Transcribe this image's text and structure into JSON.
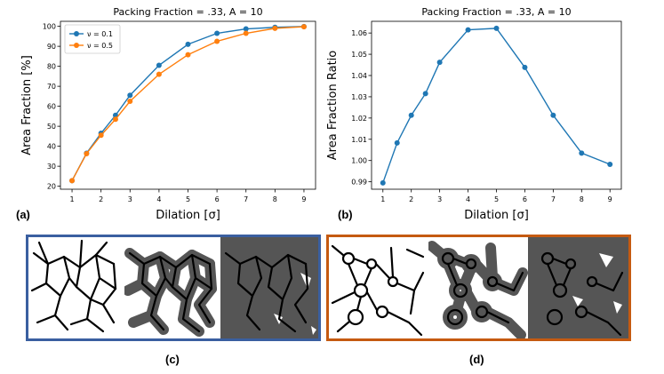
{
  "chart_data": [
    {
      "type": "line",
      "title": "Packing Fraction = .33, A = 10",
      "xlabel": "Dilation [σ]",
      "ylabel": "Area Fraction [%]",
      "x": [
        1,
        1.5,
        2,
        2.5,
        3,
        4,
        5,
        6,
        7,
        8,
        9
      ],
      "xticks": [
        1,
        2,
        3,
        4,
        5,
        6,
        7,
        8,
        9
      ],
      "yticks": [
        20,
        30,
        40,
        50,
        60,
        70,
        80,
        90,
        100
      ],
      "xlim": [
        0.6,
        9.4
      ],
      "ylim": [
        18.5,
        102.5
      ],
      "legend": "top-left",
      "grid": false,
      "series": [
        {
          "name": "ν = 0.1",
          "color": "#1f77b4",
          "values": [
            22.8,
            36.5,
            46.5,
            55.5,
            65.5,
            80.5,
            91,
            96.5,
            98.7,
            99.5,
            99.9
          ]
        },
        {
          "name": "ν = 0.5",
          "color": "#ff7f0e",
          "values": [
            22.8,
            36.3,
            45.5,
            53.5,
            62.5,
            76,
            85.8,
            92.5,
            96.5,
            99,
            99.8
          ]
        }
      ]
    },
    {
      "type": "line",
      "title": "Packing Fraction = .33, A = 10",
      "xlabel": "Dilation [σ]",
      "ylabel": "Area Fraction Ratio",
      "x": [
        1,
        1.5,
        2,
        2.5,
        3,
        4,
        5,
        6,
        7,
        8,
        9
      ],
      "xticks": [
        1,
        2,
        3,
        4,
        5,
        6,
        7,
        8,
        9
      ],
      "yticks": [
        0.99,
        1.0,
        1.01,
        1.02,
        1.03,
        1.04,
        1.05,
        1.06
      ],
      "xlim": [
        0.6,
        9.4
      ],
      "ylim": [
        0.9865,
        1.0655
      ],
      "grid": false,
      "series": [
        {
          "color": "#1f77b4",
          "values": [
            0.9895,
            1.0083,
            1.0213,
            1.0315,
            1.0462,
            1.0615,
            1.0622,
            1.0438,
            1.0213,
            1.0035,
            0.9982
          ]
        }
      ]
    }
  ],
  "labels": {
    "a": "(a)",
    "b": "(b)",
    "c": "(c)",
    "d": "(d)"
  },
  "colors": {
    "border_c": "#3a5fa0",
    "border_d": "#c55a11",
    "dilation_fill": "#555555",
    "network": "#000000"
  }
}
